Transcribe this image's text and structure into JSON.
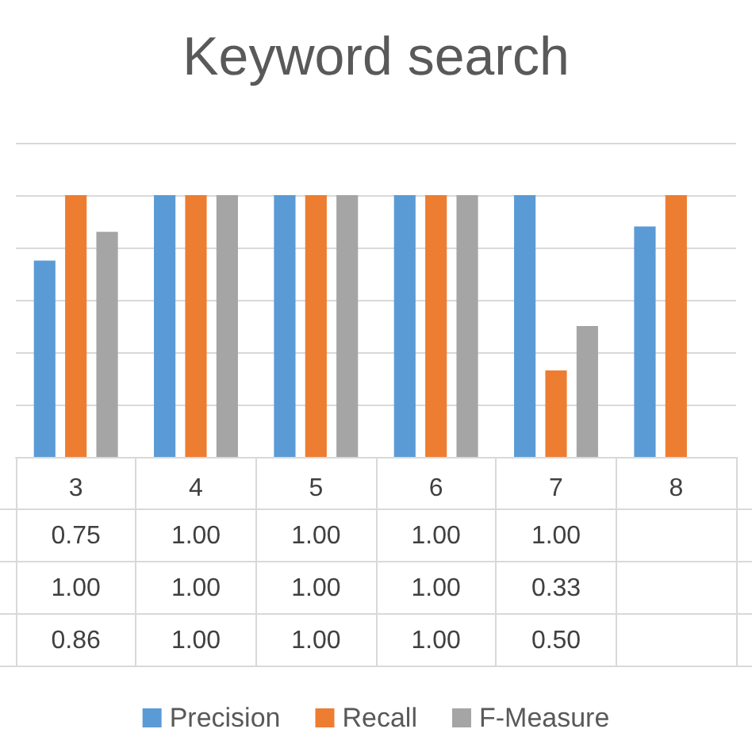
{
  "chart_data": {
    "type": "bar",
    "title": "Keyword search",
    "categories": [
      "3",
      "4",
      "5",
      "6",
      "7",
      "8"
    ],
    "series": [
      {
        "name": "Precision",
        "color": "#5b9bd5",
        "values": [
          0.75,
          1.0,
          1.0,
          1.0,
          1.0,
          0.88
        ],
        "value_labels": [
          "0.75",
          "1.00",
          "1.00",
          "1.00",
          "1.00",
          null
        ]
      },
      {
        "name": "Recall",
        "color": "#ed7d31",
        "values": [
          1.0,
          1.0,
          1.0,
          1.0,
          0.33,
          1.0
        ],
        "value_labels": [
          "1.00",
          "1.00",
          "1.00",
          "1.00",
          "0.33",
          null
        ]
      },
      {
        "name": "F-Measure",
        "color": "#a5a5a5",
        "values": [
          0.86,
          1.0,
          1.0,
          1.0,
          0.5,
          null
        ],
        "value_labels": [
          "0.86",
          "1.00",
          "1.00",
          "1.00",
          "0.50",
          null
        ]
      }
    ],
    "ylim": [
      0,
      1.2
    ],
    "yticks": [
      {
        "value": 0,
        "label": null
      },
      {
        "value": 0.2,
        "label": null
      },
      {
        "value": 0.4,
        "label": null
      },
      {
        "value": 0.6,
        "label": null
      },
      {
        "value": 0.8,
        "label": null
      },
      {
        "value": 1.0,
        "label": null
      },
      {
        "value": 1.2,
        "label": null
      }
    ],
    "tick_labels": "x",
    "grid": "y",
    "legend": "bottom"
  }
}
